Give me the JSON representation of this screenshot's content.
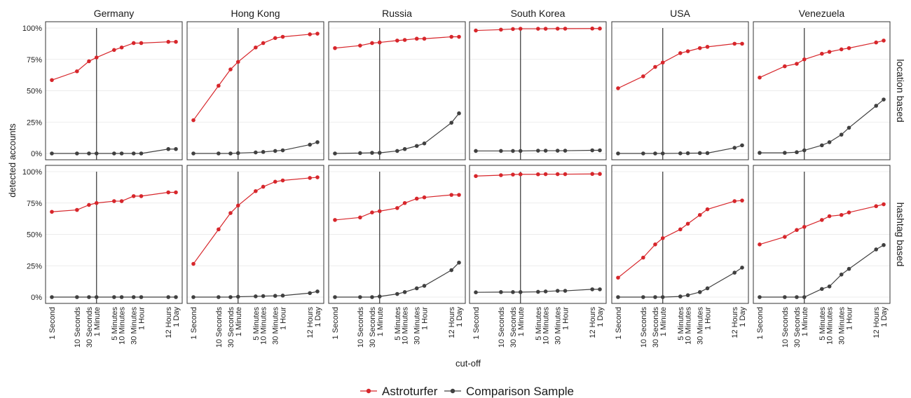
{
  "chart_data": {
    "type": "line",
    "xlabel": "cut-off",
    "ylabel": "detected accounts",
    "ylim": [
      0,
      100
    ],
    "y_ticks": [
      "0%",
      "25%",
      "50%",
      "75%",
      "100%"
    ],
    "y_tick_values": [
      0,
      25,
      50,
      75,
      100
    ],
    "x_tick_labels": [
      "1 Second",
      "10 Seconds",
      "30 Seconds",
      "1 Minute",
      "5 Minutes",
      "10 Minutes",
      "30 Minutes",
      "1 Hour",
      "12 Hours",
      "1 Day"
    ],
    "x_scale": "log",
    "x_values_seconds": [
      1,
      10,
      30,
      60,
      300,
      600,
      1800,
      3600,
      43200,
      86400
    ],
    "cutoff_marker_seconds": 60,
    "legend_position": "bottom",
    "countries": [
      "Germany",
      "Hong Kong",
      "Russia",
      "South Korea",
      "USA",
      "Venezuela"
    ],
    "methods": [
      "location based",
      "hashtag based"
    ],
    "series_meta": [
      {
        "name": "Astroturfer",
        "color": "#d7262b"
      },
      {
        "name": "Comparison Sample",
        "color": "#404040"
      }
    ],
    "panels": {
      "location based": {
        "Germany": {
          "Astroturfer": [
            58.5,
            65.5,
            73.5,
            76.5,
            82.5,
            84.5,
            88,
            88,
            89,
            89
          ],
          "Comparison Sample": [
            0,
            0,
            0,
            0,
            0,
            0,
            0,
            0,
            3.5,
            3.5
          ]
        },
        "Hong Kong": {
          "Astroturfer": [
            26.5,
            54,
            67,
            73,
            84.5,
            88,
            92,
            93,
            95,
            95.5
          ],
          "Comparison Sample": [
            0,
            0,
            0,
            0.3,
            0.8,
            1.2,
            2,
            2.5,
            7,
            9
          ]
        },
        "Russia": {
          "Astroturfer": [
            84,
            86,
            88,
            88.5,
            90,
            90.5,
            91.5,
            91.5,
            93,
            93
          ],
          "Comparison Sample": [
            0,
            0.3,
            0.5,
            0.5,
            2,
            3.5,
            6,
            8,
            24.5,
            32
          ]
        },
        "South Korea": {
          "Astroturfer": [
            98,
            98.7,
            99.2,
            99.4,
            99.4,
            99.4,
            99.5,
            99.5,
            99.6,
            99.6
          ],
          "Comparison Sample": [
            2,
            2,
            2,
            2,
            2.2,
            2.2,
            2.2,
            2.2,
            2.5,
            2.5
          ]
        },
        "USA": {
          "Astroturfer": [
            52,
            61.5,
            69,
            72.5,
            80,
            81.5,
            84,
            85,
            87.5,
            87.5
          ],
          "Comparison Sample": [
            0,
            0,
            0,
            0,
            0.1,
            0.2,
            0.3,
            0.3,
            4.5,
            6.5
          ]
        },
        "Venezuela": {
          "Astroturfer": [
            60.5,
            69.5,
            71.5,
            75,
            79.5,
            81,
            83,
            84,
            88.5,
            90
          ],
          "Comparison Sample": [
            0.5,
            0.5,
            1,
            2.5,
            6.5,
            9,
            15,
            20.5,
            38,
            43
          ]
        }
      },
      "hashtag based": {
        "Germany": {
          "Astroturfer": [
            68,
            69.5,
            73.5,
            75,
            76.5,
            76.5,
            80.5,
            80.5,
            83.5,
            83.5
          ],
          "Comparison Sample": [
            0,
            0,
            0,
            0,
            0,
            0,
            0,
            0,
            0,
            0
          ]
        },
        "Hong Kong": {
          "Astroturfer": [
            26.5,
            54,
            67,
            73,
            84.5,
            88,
            92,
            93,
            95,
            95.5
          ],
          "Comparison Sample": [
            0,
            0,
            0,
            0.3,
            0.6,
            0.8,
            1,
            1.2,
            3.2,
            4.5
          ]
        },
        "Russia": {
          "Astroturfer": [
            61.5,
            63.5,
            67.5,
            68.5,
            71,
            75,
            78.5,
            79.5,
            81.5,
            81.5
          ],
          "Comparison Sample": [
            0,
            0,
            0,
            0.5,
            2.5,
            4,
            7,
            9,
            21.5,
            27.5
          ]
        },
        "South Korea": {
          "Astroturfer": [
            96.5,
            97.2,
            97.7,
            97.9,
            97.9,
            98,
            98,
            98,
            98.2,
            98.2
          ],
          "Comparison Sample": [
            3.8,
            4,
            4,
            4,
            4.2,
            4.5,
            5,
            5,
            6.2,
            6.2
          ]
        },
        "USA": {
          "Astroturfer": [
            15.5,
            31.5,
            42,
            47,
            54,
            58.5,
            65.5,
            70,
            76.5,
            77
          ],
          "Comparison Sample": [
            0,
            0,
            0,
            0,
            0.5,
            1.5,
            4,
            7,
            19.5,
            23.5
          ]
        },
        "Venezuela": {
          "Astroturfer": [
            42,
            48,
            53.5,
            56,
            61.5,
            64.5,
            65.5,
            67.5,
            72.5,
            74
          ],
          "Comparison Sample": [
            0,
            0,
            0,
            0,
            6.5,
            8.5,
            18,
            22.5,
            38,
            41.5
          ]
        }
      }
    }
  }
}
